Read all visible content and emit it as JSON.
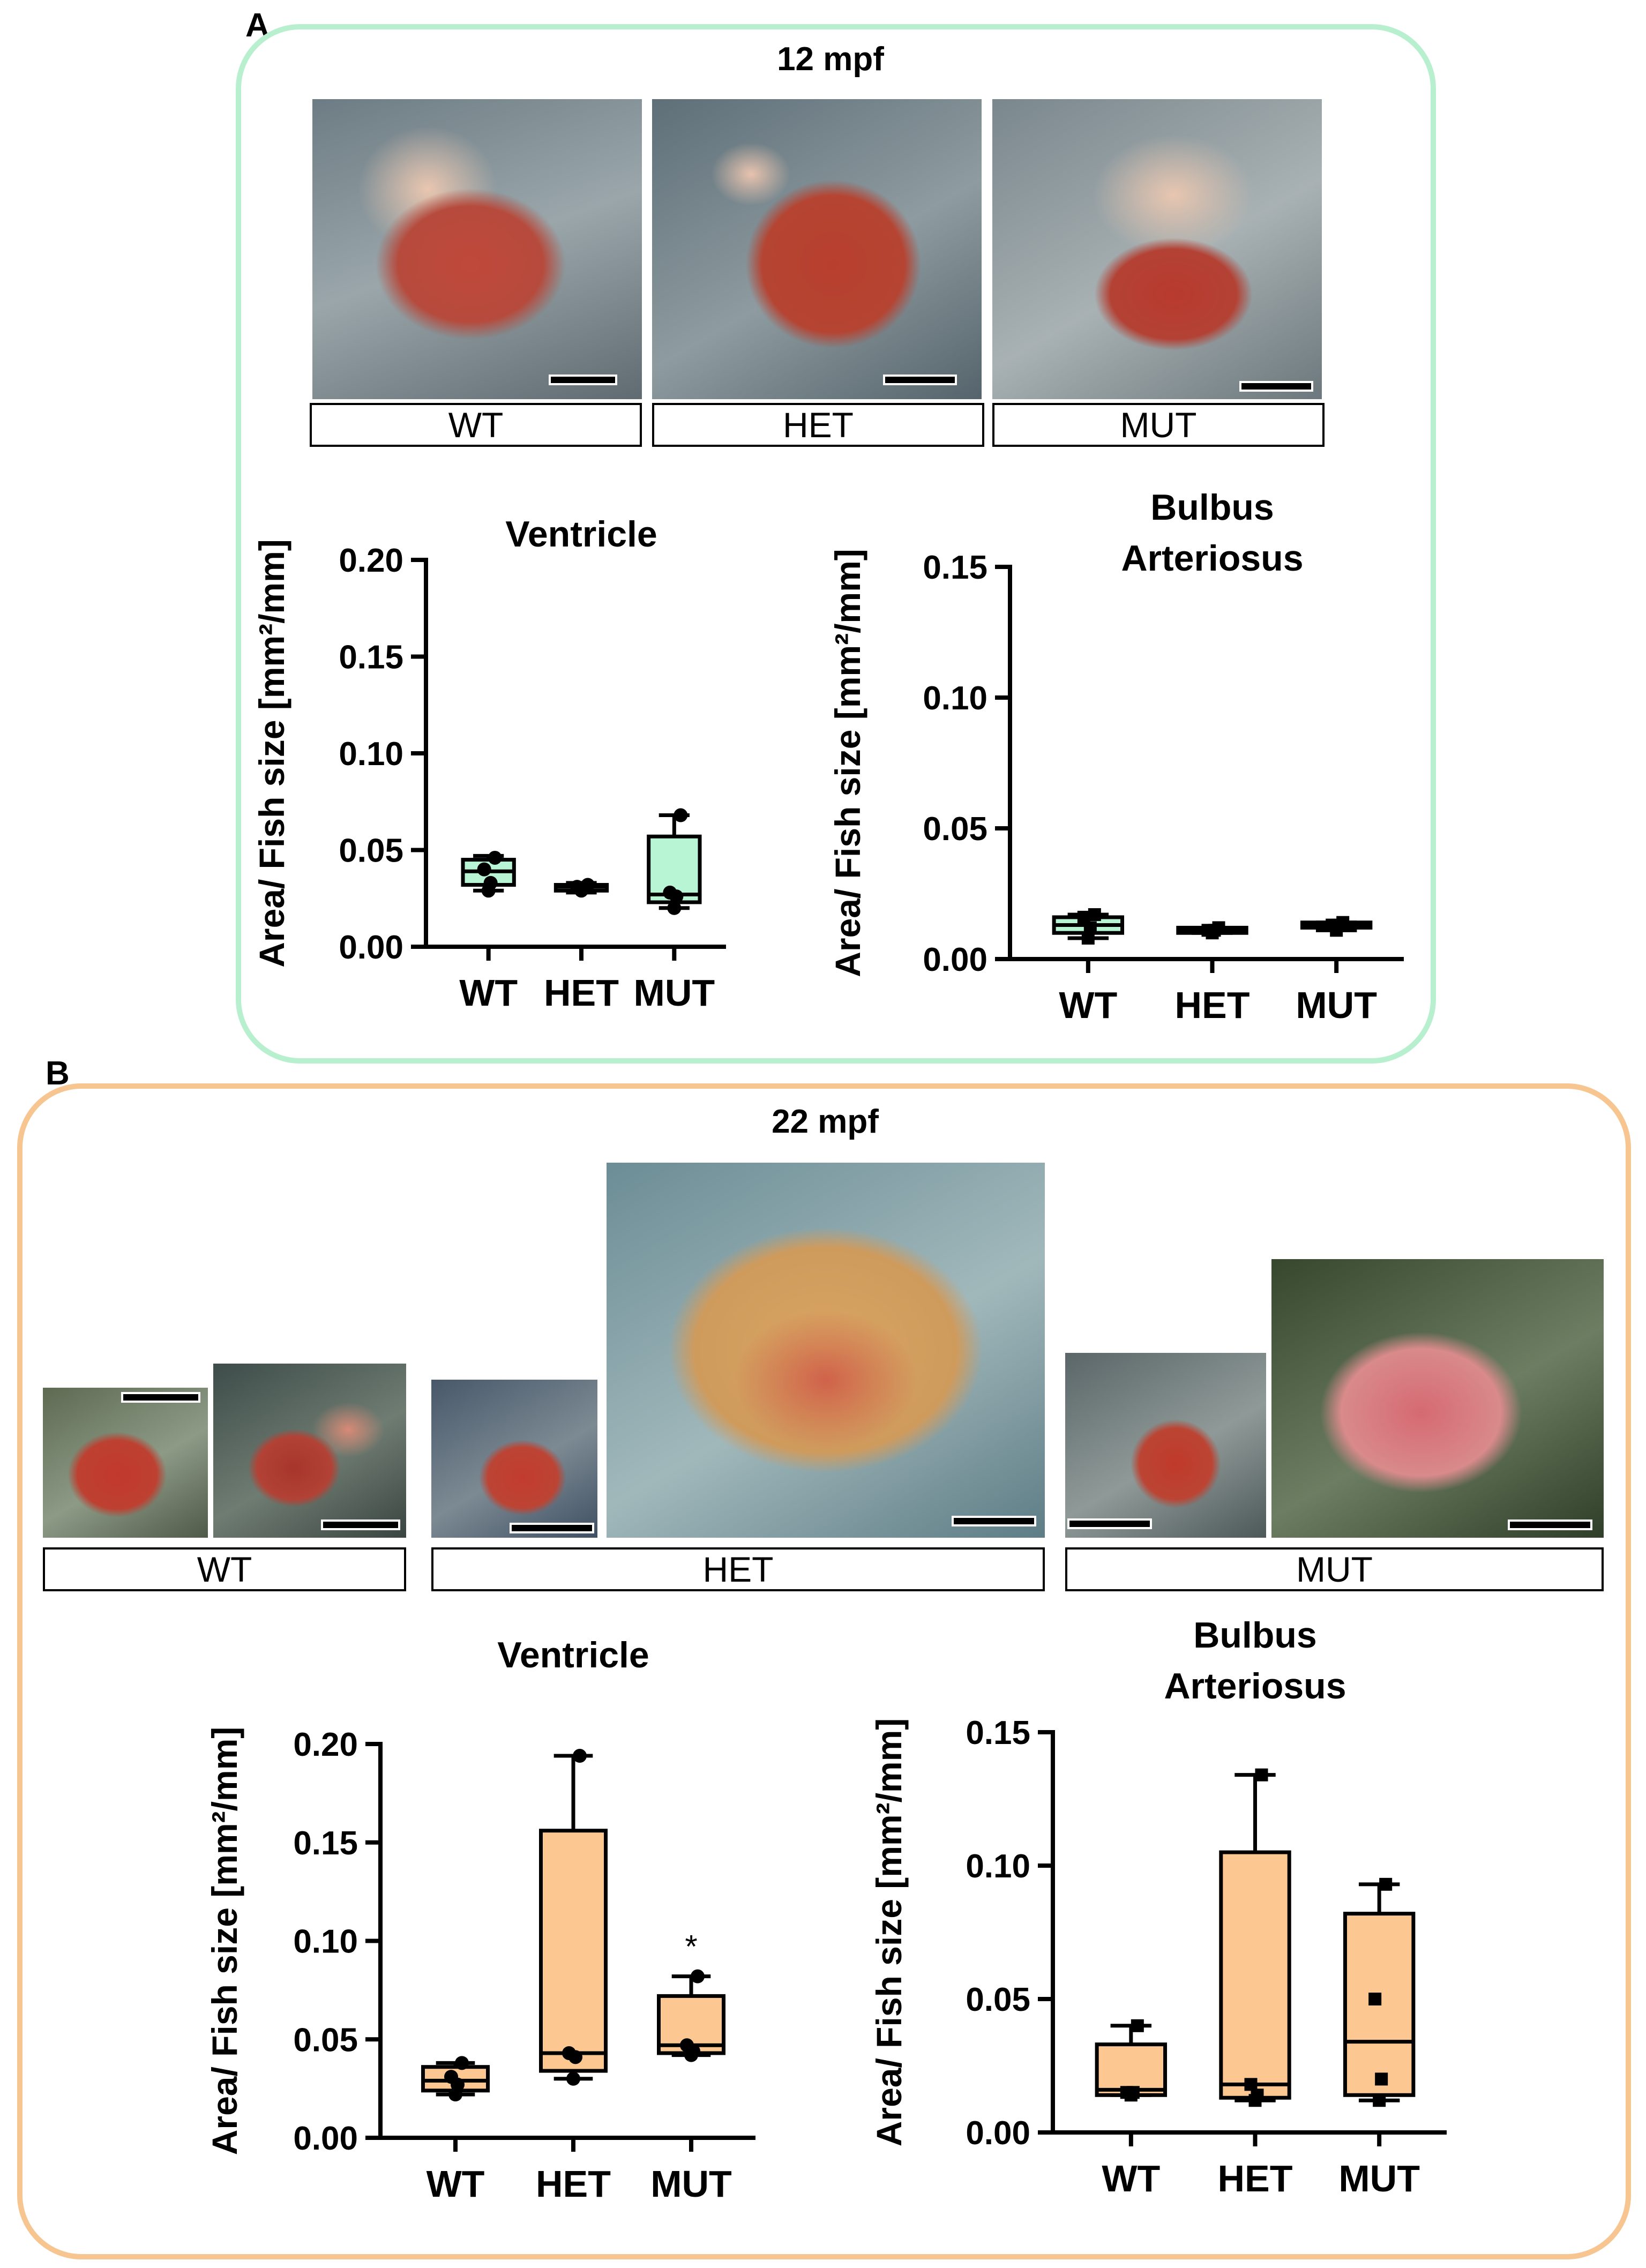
{
  "figure": {
    "panel_a": {
      "letter": "A",
      "title": "12 mpf",
      "accent_color": "#b8f0cf",
      "box_fill": "#b8f5d4",
      "groups": [
        "WT",
        "HET",
        "MUT"
      ]
    },
    "panel_b": {
      "letter": "B",
      "title": "22 mpf",
      "accent_color": "#f7c590",
      "box_fill": "#fcc791",
      "groups": [
        "WT",
        "HET",
        "MUT"
      ]
    }
  },
  "chart_data": [
    {
      "id": "a_ventricle",
      "type": "boxplot",
      "title": "Ventricle",
      "title_lines": [
        "Ventricle"
      ],
      "ylabel": "Area/ Fish size [mm²/mm]",
      "categories": [
        "WT",
        "HET",
        "MUT"
      ],
      "ylim": [
        0,
        0.2
      ],
      "yticks": [
        0.0,
        0.05,
        0.1,
        0.15,
        0.2
      ],
      "ytick_labels": [
        "0.00",
        "0.05",
        "0.10",
        "0.15",
        "0.20"
      ],
      "fill": "#b8f5d4",
      "boxes": [
        {
          "min": 0.029,
          "q1": 0.032,
          "median": 0.039,
          "q3": 0.045,
          "max": 0.047
        },
        {
          "min": 0.028,
          "q1": 0.029,
          "median": 0.031,
          "q3": 0.032,
          "max": 0.033
        },
        {
          "min": 0.02,
          "q1": 0.023,
          "median": 0.027,
          "q3": 0.057,
          "max": 0.068
        }
      ],
      "points": [
        [
          0.029,
          0.033,
          0.04,
          0.046
        ],
        [
          0.029,
          0.03,
          0.031,
          0.032
        ],
        [
          0.02,
          0.026,
          0.028,
          0.068
        ]
      ],
      "point_marker": "circle",
      "annotations": []
    },
    {
      "id": "a_bulbus",
      "type": "boxplot",
      "title": "Bulbus Arteriosus",
      "title_lines": [
        "Bulbus",
        "Arteriosus"
      ],
      "ylabel": "Area/ Fish size [mm²/mm]",
      "categories": [
        "WT",
        "HET",
        "MUT"
      ],
      "ylim": [
        0,
        0.15
      ],
      "yticks": [
        0.0,
        0.05,
        0.1,
        0.15
      ],
      "ytick_labels": [
        "0.00",
        "0.05",
        "0.10",
        "0.15"
      ],
      "fill": "#b8f5d4",
      "boxes": [
        {
          "min": 0.008,
          "q1": 0.01,
          "median": 0.013,
          "q3": 0.016,
          "max": 0.017
        },
        {
          "min": 0.01,
          "q1": 0.01,
          "median": 0.011,
          "q3": 0.012,
          "max": 0.012
        },
        {
          "min": 0.011,
          "q1": 0.012,
          "median": 0.013,
          "q3": 0.014,
          "max": 0.014
        }
      ],
      "points": [
        [
          0.008,
          0.012,
          0.016,
          0.017
        ],
        [
          0.01,
          0.011,
          0.011,
          0.012
        ],
        [
          0.011,
          0.013,
          0.013,
          0.014
        ]
      ],
      "point_marker": "square",
      "annotations": []
    },
    {
      "id": "b_ventricle",
      "type": "boxplot",
      "title": "Ventricle",
      "title_lines": [
        "Ventricle"
      ],
      "ylabel": "Area/ Fish size [mm²/mm]",
      "categories": [
        "WT",
        "HET",
        "MUT"
      ],
      "ylim": [
        0,
        0.2
      ],
      "yticks": [
        0.0,
        0.05,
        0.1,
        0.15,
        0.2
      ],
      "ytick_labels": [
        "0.00",
        "0.05",
        "0.10",
        "0.15",
        "0.20"
      ],
      "fill": "#fcc791",
      "boxes": [
        {
          "min": 0.022,
          "q1": 0.024,
          "median": 0.029,
          "q3": 0.036,
          "max": 0.038
        },
        {
          "min": 0.03,
          "q1": 0.034,
          "median": 0.043,
          "q3": 0.156,
          "max": 0.194
        },
        {
          "min": 0.042,
          "q1": 0.043,
          "median": 0.047,
          "q3": 0.072,
          "max": 0.082
        }
      ],
      "points": [
        [
          0.022,
          0.027,
          0.031,
          0.038
        ],
        [
          0.03,
          0.041,
          0.043,
          0.194
        ],
        [
          0.042,
          0.044,
          0.047,
          0.082
        ]
      ],
      "point_marker": "circle",
      "annotations": [
        {
          "category": "MUT",
          "text": "*"
        }
      ]
    },
    {
      "id": "b_bulbus",
      "type": "boxplot",
      "title": "Bulbus Arteriosus",
      "title_lines": [
        "Bulbus",
        "Arteriosus"
      ],
      "ylabel": "Area/ Fish size [mm²/mm]",
      "categories": [
        "WT",
        "HET",
        "MUT"
      ],
      "ylim": [
        0,
        0.15
      ],
      "yticks": [
        0.0,
        0.05,
        0.1,
        0.15
      ],
      "ytick_labels": [
        "0.00",
        "0.05",
        "0.10",
        "0.15"
      ],
      "fill": "#fcc791",
      "boxes": [
        {
          "min": 0.014,
          "q1": 0.014,
          "median": 0.016,
          "q3": 0.033,
          "max": 0.04
        },
        {
          "min": 0.012,
          "q1": 0.013,
          "median": 0.018,
          "q3": 0.105,
          "max": 0.134
        },
        {
          "min": 0.012,
          "q1": 0.014,
          "median": 0.034,
          "q3": 0.082,
          "max": 0.093
        }
      ],
      "points": [
        [
          0.014,
          0.015,
          0.015,
          0.04
        ],
        [
          0.012,
          0.014,
          0.018,
          0.134
        ],
        [
          0.012,
          0.02,
          0.05,
          0.093
        ]
      ],
      "point_marker": "square",
      "annotations": []
    }
  ]
}
